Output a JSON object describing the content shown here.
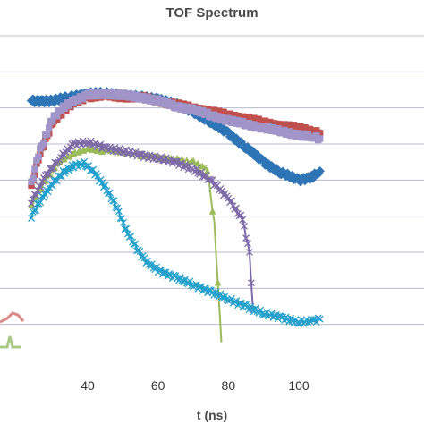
{
  "chart_data": {
    "type": "line",
    "title": "TOF Spectrum",
    "xlabel": "t (ns)",
    "ylabel": "",
    "x_ticks": [
      40,
      60,
      80,
      100
    ],
    "xlim": [
      24,
      106
    ],
    "ylim": [
      0,
      10
    ],
    "y_gridlines": [
      1,
      2,
      3,
      4,
      5,
      6,
      7,
      8,
      9
    ],
    "grid": true,
    "series": [
      {
        "color": "#2e75b6",
        "marker": "diamond",
        "x": [
          24,
          30,
          35,
          40,
          45,
          50,
          55,
          60,
          65,
          70,
          75,
          80,
          85,
          90,
          95,
          100,
          104,
          106
        ],
        "y": [
          7.2,
          7.2,
          7.3,
          7.4,
          7.4,
          7.35,
          7.3,
          7.25,
          7.1,
          6.9,
          6.6,
          6.3,
          5.9,
          5.5,
          5.2,
          5.0,
          5.1,
          5.25
        ]
      },
      {
        "color": "#c0504d",
        "marker": "square",
        "x": [
          24,
          26,
          28,
          30,
          33,
          36,
          40,
          45,
          50,
          55,
          60,
          65,
          70,
          75,
          80,
          85,
          90,
          95,
          100,
          104,
          106
        ],
        "y": [
          4.8,
          5.6,
          6.1,
          6.6,
          6.9,
          7.15,
          7.3,
          7.35,
          7.3,
          7.3,
          7.2,
          7.1,
          7.0,
          6.9,
          6.8,
          6.7,
          6.6,
          6.5,
          6.45,
          6.35,
          6.3
        ]
      },
      {
        "color": "#a094c8",
        "marker": "square",
        "x": [
          24,
          26,
          28,
          30,
          33,
          36,
          40,
          45,
          50,
          55,
          60,
          65,
          70,
          75,
          80,
          85,
          90,
          95,
          100,
          104,
          106
        ],
        "y": [
          4.9,
          5.7,
          6.2,
          6.7,
          7.0,
          7.2,
          7.35,
          7.4,
          7.35,
          7.3,
          7.2,
          7.05,
          6.95,
          6.8,
          6.65,
          6.55,
          6.45,
          6.35,
          6.25,
          6.2,
          6.15
        ]
      },
      {
        "color": "#9bbb59",
        "marker": "triangle",
        "x": [
          24,
          28,
          32,
          36,
          40,
          45,
          50,
          55,
          60,
          65,
          70,
          74,
          76,
          78
        ],
        "y": [
          4.3,
          5.0,
          5.5,
          5.75,
          5.85,
          5.8,
          5.75,
          5.7,
          5.65,
          5.6,
          5.5,
          5.3,
          3.8,
          0.5
        ]
      },
      {
        "color": "#7f6aa8",
        "marker": "x",
        "x": [
          24,
          28,
          32,
          36,
          40,
          45,
          50,
          55,
          60,
          65,
          70,
          75,
          80,
          84,
          86,
          87
        ],
        "y": [
          4.4,
          5.1,
          5.6,
          6.0,
          6.05,
          5.9,
          5.8,
          5.7,
          5.6,
          5.5,
          5.3,
          5.0,
          4.5,
          3.9,
          3.0,
          1.4
        ]
      },
      {
        "color": "#23a0cc",
        "marker": "x",
        "x": [
          24,
          27,
          30,
          33,
          36,
          39,
          42,
          45,
          48,
          51,
          54,
          57,
          60,
          65,
          70,
          75,
          80,
          85,
          90,
          95,
          100,
          104,
          106
        ],
        "y": [
          4.0,
          4.5,
          4.9,
          5.2,
          5.4,
          5.45,
          5.2,
          4.8,
          4.3,
          3.6,
          3.1,
          2.7,
          2.5,
          2.3,
          2.1,
          1.9,
          1.7,
          1.5,
          1.3,
          1.2,
          1.05,
          1.1,
          1.15
        ]
      }
    ]
  }
}
